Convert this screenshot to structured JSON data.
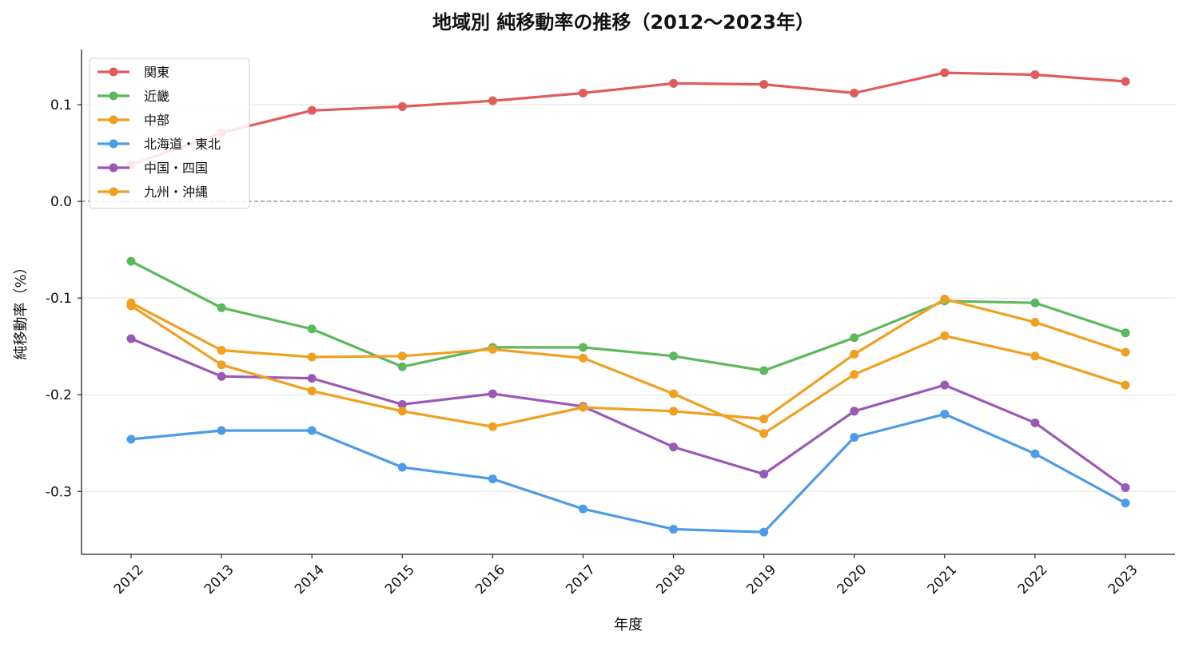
{
  "chart_data": {
    "type": "line",
    "title": "地域別 純移動率の推移（2012〜2023年）",
    "xlabel": "年度",
    "ylabel": "純移動率（%）",
    "categories": [
      "2012",
      "2013",
      "2014",
      "2015",
      "2016",
      "2017",
      "2018",
      "2019",
      "2020",
      "2021",
      "2022",
      "2023"
    ],
    "ylim": [
      -0.365,
      0.157
    ],
    "yticks": [
      0.1,
      0.0,
      -0.1,
      -0.2,
      -0.3
    ],
    "ytick_labels": [
      "0.1",
      "0.0",
      "-0.1",
      "-0.2",
      "-0.3"
    ],
    "grid": "horizontal",
    "zero_line": "dashed",
    "legend_position": "top-left",
    "series": [
      {
        "name": "関東",
        "color": "#e05c5c",
        "values": [
          0.038,
          0.071,
          0.094,
          0.098,
          0.104,
          0.112,
          0.122,
          0.121,
          0.112,
          0.133,
          0.131,
          0.124
        ]
      },
      {
        "name": "近畿",
        "color": "#5cb85c",
        "values": [
          -0.062,
          -0.11,
          -0.132,
          -0.171,
          -0.151,
          -0.151,
          -0.16,
          -0.175,
          -0.141,
          -0.103,
          -0.105,
          -0.136
        ]
      },
      {
        "name": "中部",
        "color": "#f0a020",
        "values": [
          -0.105,
          -0.154,
          -0.161,
          -0.16,
          -0.153,
          -0.162,
          -0.199,
          -0.24,
          -0.179,
          -0.139,
          -0.16,
          -0.19
        ]
      },
      {
        "name": "北海道・東北",
        "color": "#4d9be8",
        "values": [
          -0.246,
          -0.237,
          -0.237,
          -0.275,
          -0.287,
          -0.318,
          -0.339,
          -0.342,
          -0.244,
          -0.22,
          -0.261,
          -0.312
        ]
      },
      {
        "name": "中国・四国",
        "color": "#9b59b6",
        "values": [
          -0.142,
          -0.181,
          -0.183,
          -0.21,
          -0.199,
          -0.212,
          -0.254,
          -0.282,
          -0.217,
          -0.19,
          -0.229,
          -0.296
        ]
      },
      {
        "name": "九州・沖縄",
        "color": "#f0a020",
        "values": [
          -0.108,
          -0.169,
          -0.196,
          -0.217,
          -0.233,
          -0.213,
          -0.217,
          -0.225,
          -0.158,
          -0.101,
          -0.125,
          -0.156
        ]
      }
    ]
  }
}
